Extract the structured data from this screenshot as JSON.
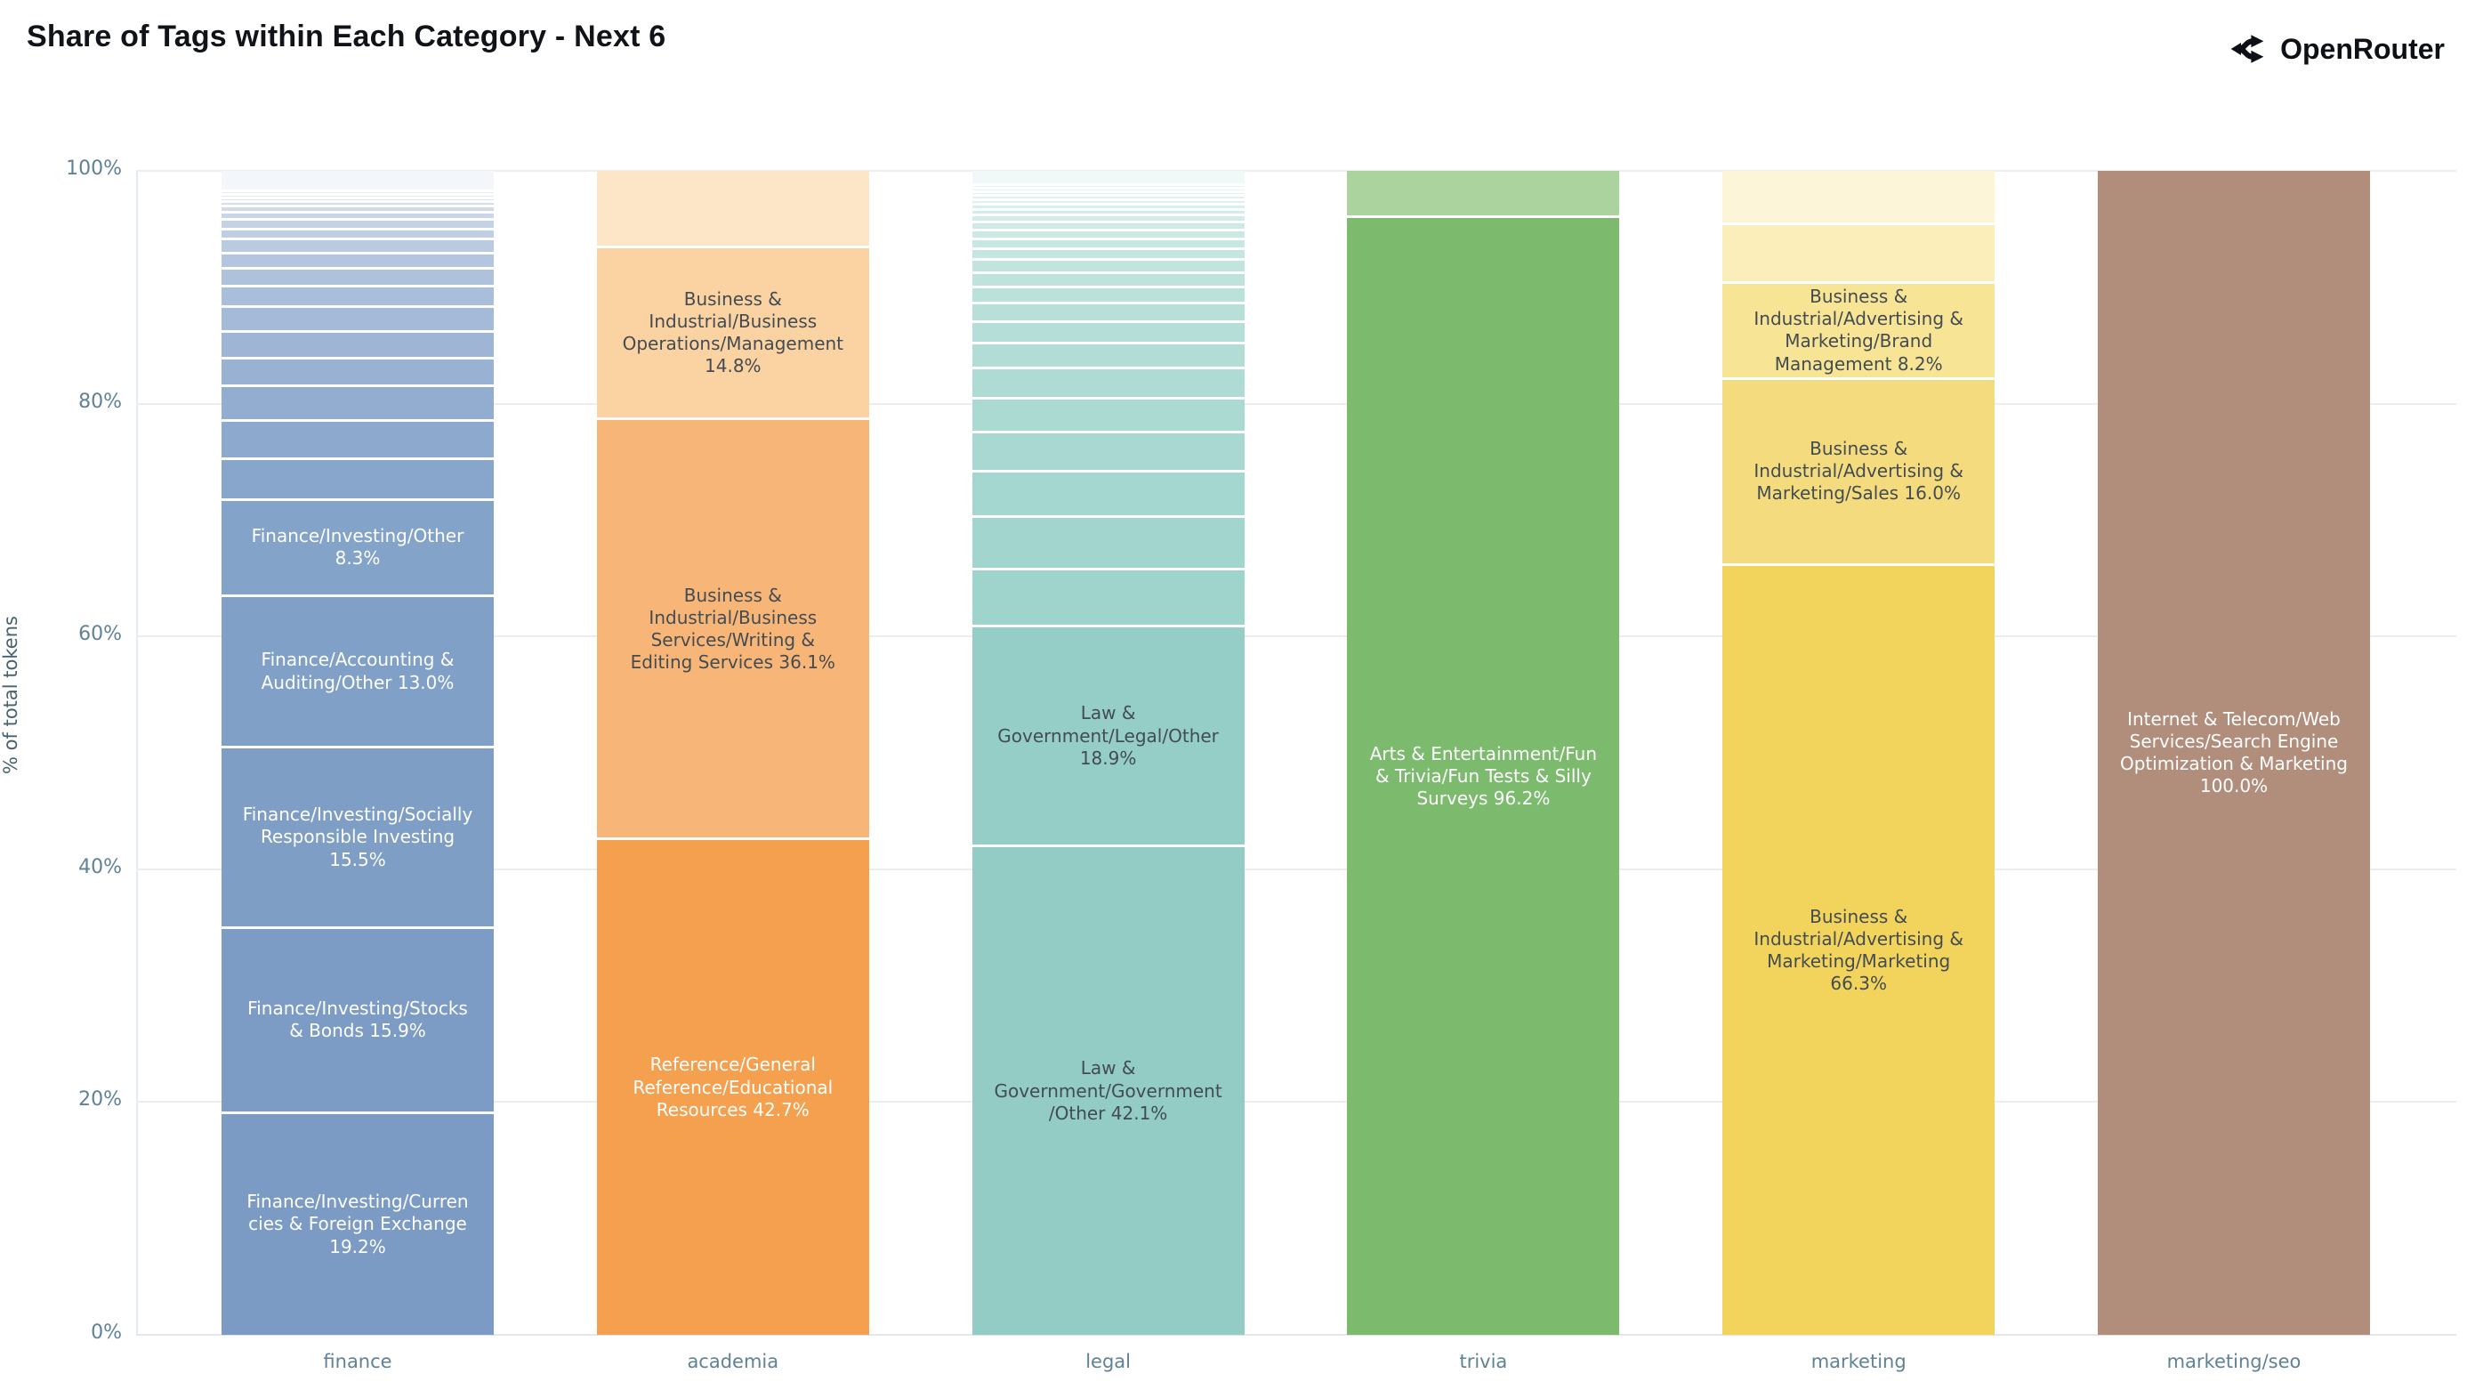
{
  "header": {
    "title": "Share of Tags within Each Category - Next 6",
    "brand": "OpenRouter"
  },
  "styles": {
    "background": "#ffffff",
    "title_color": "#101418",
    "axis_tick_color": "#5f8296",
    "axis_title_color": "#47626f",
    "grid_color": "#ededed",
    "axis_line_color": "#e2ebf1",
    "baseline_color": "#e4e7e9",
    "separator_color": "#ffffff",
    "dark_label": "#434c52",
    "light_label": "#ffffff"
  },
  "chart_data": {
    "type": "bar",
    "stacked": true,
    "units": "percent",
    "title": "Share of Tags within Each Category - Next 6",
    "xlabel": "",
    "ylabel": "% of total tokens",
    "ylim": [
      0,
      100
    ],
    "grid": true,
    "legend": "none",
    "yticks": [
      {
        "label": "0%",
        "value": 0
      },
      {
        "label": "20%",
        "value": 20
      },
      {
        "label": "40%",
        "value": 40
      },
      {
        "label": "60%",
        "value": 60
      },
      {
        "label": "80%",
        "value": 80
      },
      {
        "label": "100%",
        "value": 100
      }
    ],
    "categories": [
      "finance",
      "academia",
      "legal",
      "trivia",
      "marketing",
      "marketing/seo"
    ],
    "bars": [
      {
        "category": "finance",
        "segments": [
          {
            "label": "Finance/Investing/Currencies & Foreign Exchange 19.2%",
            "value": 19.2,
            "color": "#7b9bc4",
            "text": "light"
          },
          {
            "label": "Finance/Investing/Stocks & Bonds 15.9%",
            "value": 15.9,
            "color": "#7c9cc5",
            "text": "light"
          },
          {
            "label": "Finance/Investing/Socially Responsible Investing 15.5%",
            "value": 15.5,
            "color": "#7e9ec6",
            "text": "light"
          },
          {
            "label": "Finance/Accounting & Auditing/Other 13.0%",
            "value": 13.0,
            "color": "#80a0c7",
            "text": "light"
          },
          {
            "label": "Finance/Investing/Other 8.3%",
            "value": 8.3,
            "color": "#83a3c9",
            "text": "light"
          },
          {
            "label": "",
            "value": 3.45,
            "color": "#88a5cc"
          },
          {
            "label": "",
            "value": 3.3,
            "color": "#8ea9ce"
          },
          {
            "label": "",
            "value": 3.0,
            "color": "#93add1"
          },
          {
            "label": "",
            "value": 2.4,
            "color": "#99b1d3"
          },
          {
            "label": "",
            "value": 2.3,
            "color": "#9eb5d5"
          },
          {
            "label": "",
            "value": 2.1,
            "color": "#a4bad8"
          },
          {
            "label": "",
            "value": 1.8,
            "color": "#a9beda"
          },
          {
            "label": "",
            "value": 1.5,
            "color": "#afc2dc"
          },
          {
            "label": "",
            "value": 1.3,
            "color": "#b4c6df"
          },
          {
            "label": "",
            "value": 1.2,
            "color": "#bacae1"
          },
          {
            "label": "",
            "value": 0.85,
            "color": "#bfcee3"
          },
          {
            "label": "",
            "value": 0.85,
            "color": "#c5d2e6"
          },
          {
            "label": "",
            "value": 0.6,
            "color": "#cad6e8"
          },
          {
            "label": "",
            "value": 0.55,
            "color": "#d0daea"
          },
          {
            "label": "",
            "value": 0.4,
            "color": "#d5deed"
          },
          {
            "label": "",
            "value": 0.3,
            "color": "#dbe3ef"
          },
          {
            "label": "",
            "value": 0.3,
            "color": "#e0e7f1"
          },
          {
            "label": "",
            "value": 0.3,
            "color": "#e6ebf4"
          },
          {
            "label": "",
            "value": 1.6,
            "color": "#f3f6fa"
          }
        ]
      },
      {
        "category": "academia",
        "segments": [
          {
            "label": "Reference/General Reference/Educational Resources 42.7%",
            "value": 42.7,
            "color": "#f5a04e",
            "text": "light"
          },
          {
            "label": "Business & Industrial/Business Services/Writing & Editing Services 36.1%",
            "value": 36.1,
            "color": "#f7b677",
            "text": "dark"
          },
          {
            "label": "Business & Industrial/Business Operations/Management 14.8%",
            "value": 14.8,
            "color": "#fbd2a2",
            "text": "dark"
          },
          {
            "label": "",
            "value": 6.4,
            "color": "#fde5c8"
          }
        ]
      },
      {
        "category": "legal",
        "segments": [
          {
            "label": "Law & Government/Government/Other 42.1%",
            "value": 42.1,
            "color": "#92ccc4",
            "text": "dark"
          },
          {
            "label": "Law & Government/Legal/Other 18.9%",
            "value": 18.9,
            "color": "#95cec7",
            "text": "dark"
          },
          {
            "label": "",
            "value": 4.9,
            "color": "#9ed4cc"
          },
          {
            "label": "",
            "value": 4.5,
            "color": "#a1d5ce"
          },
          {
            "label": "",
            "value": 3.9,
            "color": "#a4d7cf"
          },
          {
            "label": "",
            "value": 3.4,
            "color": "#a8d8d1"
          },
          {
            "label": "",
            "value": 2.9,
            "color": "#abdad3"
          },
          {
            "label": "",
            "value": 2.6,
            "color": "#aedbd4"
          },
          {
            "label": "",
            "value": 2.1,
            "color": "#b1ddd6"
          },
          {
            "label": "",
            "value": 1.85,
            "color": "#b5ded8"
          },
          {
            "label": "",
            "value": 1.6,
            "color": "#b8e0d9"
          },
          {
            "label": "",
            "value": 1.4,
            "color": "#bbe1db"
          },
          {
            "label": "",
            "value": 1.25,
            "color": "#bee3dd"
          },
          {
            "label": "",
            "value": 1.1,
            "color": "#c2e4de"
          },
          {
            "label": "",
            "value": 0.95,
            "color": "#c5e6e0"
          },
          {
            "label": "",
            "value": 0.85,
            "color": "#c8e7e2"
          },
          {
            "label": "",
            "value": 0.75,
            "color": "#cbe9e3"
          },
          {
            "label": "",
            "value": 0.65,
            "color": "#cfeae5"
          },
          {
            "label": "",
            "value": 0.6,
            "color": "#d2ece7"
          },
          {
            "label": "",
            "value": 0.5,
            "color": "#d5ede8"
          },
          {
            "label": "",
            "value": 0.45,
            "color": "#d8efea"
          },
          {
            "label": "",
            "value": 0.4,
            "color": "#dcf0ec"
          },
          {
            "label": "",
            "value": 0.35,
            "color": "#dff2ed"
          },
          {
            "label": "",
            "value": 0.3,
            "color": "#e2f3ef"
          },
          {
            "label": "",
            "value": 0.3,
            "color": "#e5f5f0"
          },
          {
            "label": "",
            "value": 0.3,
            "color": "#e9f5f3"
          },
          {
            "label": "",
            "value": 1.1,
            "color": "#f1f9f8"
          }
        ]
      },
      {
        "category": "trivia",
        "segments": [
          {
            "label": "Arts & Entertainment/Fun & Trivia/Fun Tests & Silly Surveys 96.2%",
            "value": 96.2,
            "color": "#7cbb6e",
            "text": "light"
          },
          {
            "label": "",
            "value": 3.8,
            "color": "#aad39d"
          }
        ]
      },
      {
        "category": "marketing",
        "segments": [
          {
            "label": "Business & Industrial/Advertising & Marketing/Marketing 66.3%",
            "value": 66.3,
            "color": "#f2d45c",
            "text": "dark"
          },
          {
            "label": "Business & Industrial/Advertising & Marketing/Sales 16.0%",
            "value": 16.0,
            "color": "#f4dc7e",
            "text": "dark"
          },
          {
            "label": "Business & Industrial/Advertising & Marketing/Brand Management 8.2%",
            "value": 8.2,
            "color": "#f7e494",
            "text": "dark"
          },
          {
            "label": "",
            "value": 5.1,
            "color": "#fbeebb"
          },
          {
            "label": "",
            "value": 4.4,
            "color": "#fdf5d8"
          }
        ]
      },
      {
        "category": "marketing/seo",
        "segments": [
          {
            "label": "Internet & Telecom/Web Services/Search Engine Optimization & Marketing 100.0%",
            "value": 100.0,
            "color": "#b18d7b",
            "text": "light"
          }
        ]
      }
    ]
  }
}
